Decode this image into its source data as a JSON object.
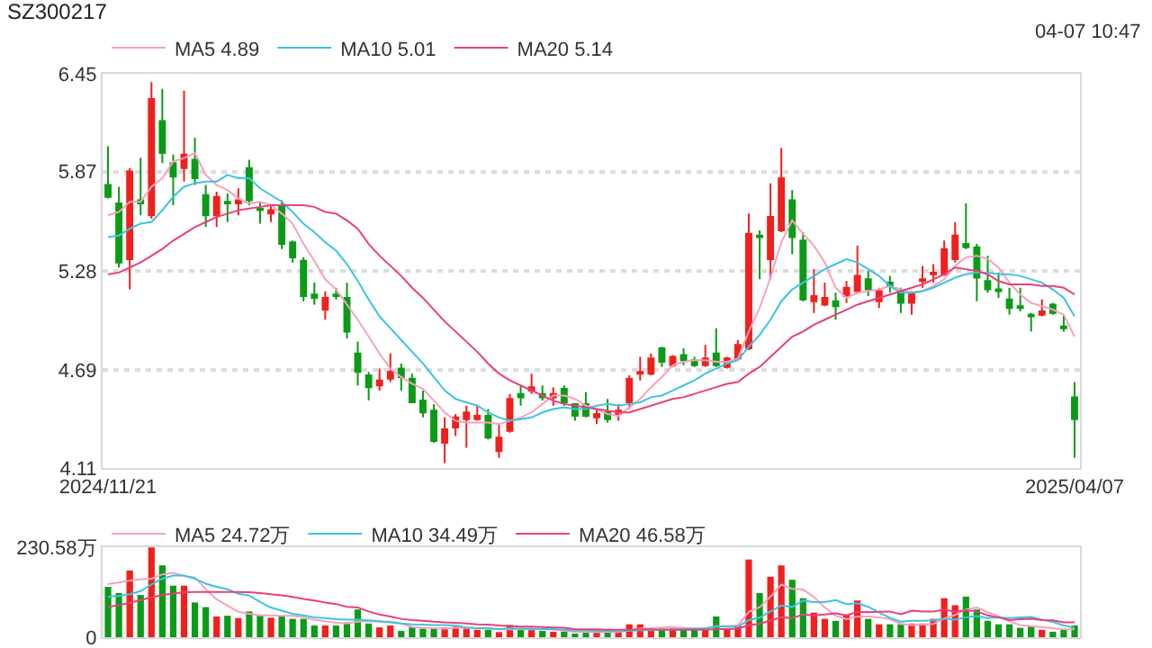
{
  "chart_data": [
    {
      "type": "candlestick",
      "title": "SZ300217",
      "annotations": [
        "04-07 10:47"
      ],
      "categories": [
        "2024/11/21",
        null,
        null,
        null,
        null,
        null,
        null,
        null,
        null,
        null,
        null,
        null,
        null,
        null,
        null,
        null,
        null,
        null,
        null,
        null,
        null,
        null,
        null,
        null,
        null,
        null,
        null,
        null,
        null,
        null,
        null,
        null,
        null,
        null,
        null,
        null,
        null,
        null,
        null,
        null,
        null,
        null,
        null,
        null,
        null,
        null,
        null,
        null,
        null,
        null,
        null,
        null,
        null,
        null,
        null,
        null,
        null,
        null,
        null,
        null,
        null,
        null,
        null,
        null,
        null,
        null,
        null,
        null,
        null,
        null,
        null,
        null,
        null,
        null,
        null,
        null,
        null,
        null,
        null,
        null,
        null,
        null,
        null,
        null,
        null,
        null,
        null,
        null,
        null,
        "2025/04/07"
      ],
      "ohlc": [
        [
          5.79,
          6.02,
          5.71,
          5.72
        ],
        [
          5.68,
          5.78,
          5.3,
          5.33
        ],
        [
          5.35,
          5.89,
          5.17,
          5.87
        ],
        [
          5.7,
          5.95,
          5.61,
          5.68
        ],
        [
          5.61,
          6.4,
          5.59,
          6.3
        ],
        [
          6.17,
          6.36,
          5.92,
          5.98
        ],
        [
          5.92,
          5.97,
          5.67,
          5.84
        ],
        [
          5.89,
          6.35,
          5.81,
          5.97
        ],
        [
          5.94,
          6.07,
          5.79,
          5.83
        ],
        [
          5.73,
          5.79,
          5.54,
          5.61
        ],
        [
          5.61,
          5.75,
          5.54,
          5.72
        ],
        [
          5.69,
          5.74,
          5.57,
          5.68
        ],
        [
          5.68,
          5.77,
          5.61,
          5.7
        ],
        [
          5.89,
          5.94,
          5.67,
          5.7
        ],
        [
          5.65,
          5.69,
          5.56,
          5.64
        ],
        [
          5.62,
          5.67,
          5.57,
          5.64
        ],
        [
          5.67,
          5.7,
          5.41,
          5.44
        ],
        [
          5.45,
          5.46,
          5.33,
          5.36
        ],
        [
          5.34,
          5.36,
          5.1,
          5.13
        ],
        [
          5.14,
          5.21,
          5.08,
          5.12
        ],
        [
          5.05,
          5.16,
          4.99,
          5.12
        ],
        [
          5.14,
          5.18,
          5.11,
          5.13
        ],
        [
          5.12,
          5.21,
          4.88,
          4.92
        ],
        [
          4.79,
          4.86,
          4.6,
          4.68
        ],
        [
          4.66,
          4.68,
          4.51,
          4.59
        ],
        [
          4.6,
          4.7,
          4.57,
          4.63
        ],
        [
          4.64,
          4.79,
          4.62,
          4.68
        ],
        [
          4.7,
          4.73,
          4.57,
          4.65
        ],
        [
          4.64,
          4.67,
          4.5,
          4.5
        ],
        [
          4.51,
          4.57,
          4.41,
          4.44
        ],
        [
          4.45,
          4.49,
          4.26,
          4.27
        ],
        [
          4.26,
          4.41,
          4.14,
          4.34
        ],
        [
          4.35,
          4.43,
          4.3,
          4.41
        ],
        [
          4.4,
          4.48,
          4.23,
          4.44
        ],
        [
          4.4,
          4.48,
          4.39,
          4.42
        ],
        [
          4.42,
          4.46,
          4.28,
          4.29
        ],
        [
          4.21,
          4.37,
          4.17,
          4.29
        ],
        [
          4.33,
          4.55,
          4.32,
          4.52
        ],
        [
          4.55,
          4.6,
          4.48,
          4.53
        ],
        [
          4.57,
          4.67,
          4.55,
          4.59
        ],
        [
          4.55,
          4.6,
          4.51,
          4.53
        ],
        [
          4.53,
          4.59,
          4.48,
          4.55
        ],
        [
          4.58,
          4.6,
          4.48,
          4.5
        ],
        [
          4.49,
          4.49,
          4.39,
          4.42
        ],
        [
          4.49,
          4.56,
          4.41,
          4.42
        ],
        [
          4.41,
          4.46,
          4.37,
          4.43
        ],
        [
          4.44,
          4.52,
          4.38,
          4.4
        ],
        [
          4.43,
          4.49,
          4.39,
          4.45
        ],
        [
          4.5,
          4.66,
          4.46,
          4.64
        ],
        [
          4.67,
          4.77,
          4.63,
          4.68
        ],
        [
          4.67,
          4.79,
          4.66,
          4.76
        ],
        [
          4.82,
          4.83,
          4.71,
          4.74
        ],
        [
          4.72,
          4.78,
          4.71,
          4.77
        ],
        [
          4.78,
          4.82,
          4.72,
          4.75
        ],
        [
          4.75,
          4.77,
          4.71,
          4.72
        ],
        [
          4.72,
          4.84,
          4.71,
          4.76
        ],
        [
          4.79,
          4.94,
          4.71,
          4.72
        ],
        [
          4.71,
          4.77,
          4.7,
          4.76
        ],
        [
          4.76,
          4.87,
          4.75,
          4.84
        ],
        [
          4.82,
          5.62,
          4.81,
          5.5
        ],
        [
          5.49,
          5.52,
          5.23,
          5.48
        ],
        [
          5.35,
          5.8,
          5.23,
          5.6
        ],
        [
          5.52,
          6.01,
          5.51,
          5.83
        ],
        [
          5.7,
          5.76,
          5.38,
          5.48
        ],
        [
          5.46,
          5.51,
          5.1,
          5.11
        ],
        [
          5.1,
          5.29,
          5.03,
          5.13
        ],
        [
          5.08,
          5.21,
          5.07,
          5.12
        ],
        [
          5.1,
          5.15,
          4.99,
          5.07
        ],
        [
          5.13,
          5.22,
          5.09,
          5.18
        ],
        [
          5.16,
          5.43,
          5.15,
          5.25
        ],
        [
          5.23,
          5.28,
          5.13,
          5.17
        ],
        [
          5.1,
          5.18,
          5.06,
          5.16
        ],
        [
          5.21,
          5.25,
          5.15,
          5.19
        ],
        [
          5.16,
          5.18,
          5.03,
          5.09
        ],
        [
          5.09,
          5.16,
          5.02,
          5.15
        ],
        [
          5.22,
          5.31,
          5.18,
          5.23
        ],
        [
          5.26,
          5.32,
          5.21,
          5.27
        ],
        [
          5.26,
          5.46,
          5.25,
          5.41
        ],
        [
          5.35,
          5.57,
          5.33,
          5.49
        ],
        [
          5.44,
          5.68,
          5.41,
          5.42
        ],
        [
          5.42,
          5.44,
          5.1,
          5.24
        ],
        [
          5.22,
          5.37,
          5.15,
          5.17
        ],
        [
          5.17,
          5.27,
          5.12,
          5.16
        ],
        [
          5.11,
          5.18,
          5.02,
          5.06
        ],
        [
          5.07,
          5.18,
          5.04,
          5.06
        ],
        [
          5.02,
          5.03,
          4.92,
          5.01
        ],
        [
          5.02,
          5.11,
          5.01,
          5.04
        ],
        [
          5.08,
          5.09,
          5.02,
          5.03
        ],
        [
          4.95,
          5.02,
          4.92,
          4.94
        ],
        [
          4.53,
          4.62,
          4.17,
          4.4
        ]
      ],
      "series": [
        {
          "type": "line",
          "name": "MA5 4.89",
          "color": "#f7a1bf",
          "values": [
            5.61,
            5.63,
            5.69,
            5.69,
            5.78,
            5.83,
            5.93,
            5.95,
            5.98,
            5.85,
            5.79,
            5.76,
            5.71,
            5.68,
            5.69,
            5.67,
            5.62,
            5.56,
            5.44,
            5.34,
            5.23,
            5.17,
            5.08,
            4.99,
            4.89,
            4.79,
            4.7,
            4.65,
            4.61,
            4.58,
            4.51,
            4.44,
            4.39,
            4.38,
            4.38,
            4.38,
            4.37,
            4.39,
            4.41,
            4.44,
            4.49,
            4.54,
            4.54,
            4.52,
            4.48,
            4.46,
            4.43,
            4.42,
            4.47,
            4.52,
            4.59,
            4.65,
            4.72,
            4.74,
            4.75,
            4.75,
            4.74,
            4.74,
            4.76,
            4.92,
            5.06,
            5.24,
            5.45,
            5.58,
            5.5,
            5.43,
            5.33,
            5.18,
            5.12,
            5.15,
            5.16,
            5.17,
            5.19,
            5.17,
            5.15,
            5.16,
            5.19,
            5.23,
            5.31,
            5.36,
            5.37,
            5.35,
            5.3,
            5.21,
            5.14,
            5.09,
            5.07,
            5.05,
            5.02,
            4.89
          ]
        },
        {
          "type": "line",
          "name": "MA10 5.01",
          "color": "#3cc3e3",
          "values": [
            5.48,
            5.49,
            5.53,
            5.56,
            5.57,
            5.64,
            5.72,
            5.78,
            5.8,
            5.81,
            5.81,
            5.85,
            5.83,
            5.83,
            5.77,
            5.73,
            5.69,
            5.63,
            5.56,
            5.51,
            5.45,
            5.4,
            5.32,
            5.22,
            5.11,
            5.01,
            4.94,
            4.87,
            4.8,
            4.73,
            4.65,
            4.57,
            4.52,
            4.5,
            4.48,
            4.44,
            4.41,
            4.39,
            4.4,
            4.41,
            4.44,
            4.46,
            4.47,
            4.46,
            4.46,
            4.48,
            4.49,
            4.48,
            4.49,
            4.5,
            4.53,
            4.54,
            4.57,
            4.6,
            4.63,
            4.67,
            4.7,
            4.73,
            4.75,
            4.83,
            4.9,
            4.99,
            5.1,
            5.17,
            5.21,
            5.25,
            5.29,
            5.32,
            5.35,
            5.33,
            5.29,
            5.25,
            5.19,
            5.15,
            5.15,
            5.16,
            5.18,
            5.21,
            5.24,
            5.26,
            5.27,
            5.27,
            5.26,
            5.26,
            5.25,
            5.23,
            5.21,
            5.17,
            5.12,
            5.01
          ]
        },
        {
          "type": "line",
          "name": "MA20 5.14",
          "color": "#e8407a",
          "values": [
            5.26,
            5.27,
            5.3,
            5.33,
            5.37,
            5.41,
            5.46,
            5.5,
            5.54,
            5.57,
            5.6,
            5.62,
            5.64,
            5.65,
            5.66,
            5.67,
            5.67,
            5.67,
            5.67,
            5.66,
            5.63,
            5.62,
            5.58,
            5.53,
            5.44,
            5.37,
            5.31,
            5.25,
            5.18,
            5.12,
            5.05,
            4.98,
            4.92,
            4.86,
            4.8,
            4.73,
            4.67,
            4.63,
            4.6,
            4.57,
            4.54,
            4.51,
            4.49,
            4.48,
            4.47,
            4.46,
            4.45,
            4.44,
            4.44,
            4.46,
            4.48,
            4.5,
            4.52,
            4.53,
            4.55,
            4.57,
            4.59,
            4.61,
            4.62,
            4.67,
            4.71,
            4.77,
            4.83,
            4.89,
            4.92,
            4.96,
            4.99,
            5.02,
            5.05,
            5.08,
            5.1,
            5.12,
            5.14,
            5.16,
            5.18,
            5.2,
            5.23,
            5.26,
            5.3,
            5.29,
            5.28,
            5.26,
            5.22,
            5.2,
            5.2,
            5.2,
            5.19,
            5.19,
            5.18,
            5.14
          ]
        }
      ],
      "ylim": [
        4.11,
        6.45
      ],
      "yticks": [
        4.11,
        4.69,
        5.28,
        5.87,
        6.45
      ],
      "grid": "y",
      "legend": "top left"
    },
    {
      "type": "bar",
      "categories": [
        "2024/11/21",
        null,
        null,
        null,
        null,
        null,
        null,
        null,
        null,
        null,
        null,
        null,
        null,
        null,
        null,
        null,
        null,
        null,
        null,
        null,
        null,
        null,
        null,
        null,
        null,
        null,
        null,
        null,
        null,
        null,
        null,
        null,
        null,
        null,
        null,
        null,
        null,
        null,
        null,
        null,
        null,
        null,
        null,
        null,
        null,
        null,
        null,
        null,
        null,
        null,
        null,
        null,
        null,
        null,
        null,
        null,
        null,
        null,
        null,
        null,
        null,
        null,
        null,
        null,
        null,
        null,
        null,
        null,
        null,
        null,
        null,
        null,
        null,
        null,
        null,
        null,
        null,
        null,
        null,
        null,
        null,
        null,
        null,
        null,
        null,
        null,
        null,
        null,
        null,
        "2025/04/07"
      ],
      "series": [
        {
          "type": "bar",
          "values": [
            129,
            113,
            171,
            108,
            230,
            184,
            132,
            132,
            89,
            77,
            53,
            55,
            49,
            66,
            58,
            50,
            53,
            47,
            47,
            30,
            30,
            30,
            38,
            71,
            35,
            25,
            30,
            16,
            25,
            22,
            22,
            25,
            27,
            22,
            19,
            19,
            13,
            31,
            19,
            19,
            16,
            14,
            14,
            9,
            14,
            14,
            14,
            14,
            33,
            33,
            22,
            22,
            22,
            22,
            22,
            22,
            53,
            22,
            31,
            199,
            113,
            155,
            184,
            147,
            100,
            63,
            47,
            42,
            58,
            94,
            47,
            33,
            33,
            33,
            35,
            35,
            47,
            100,
            82,
            104,
            71,
            42,
            33,
            33,
            24,
            30,
            19,
            14,
            19,
            30
          ],
          "colors": [
            "#0b9b16",
            "#0b9b16",
            "#f0201c",
            "#0b9b16",
            "#f0201c",
            "#0b9b16",
            "#0b9b16",
            "#f0201c",
            "#0b9b16",
            "#0b9b16",
            "#f0201c",
            "#0b9b16",
            "#f0201c",
            "#0b9b16",
            "#0b9b16",
            "#f0201c",
            "#0b9b16",
            "#0b9b16",
            "#0b9b16",
            "#0b9b16",
            "#f0201c",
            "#0b9b16",
            "#0b9b16",
            "#0b9b16",
            "#0b9b16",
            "#f0201c",
            "#f0201c",
            "#0b9b16",
            "#0b9b16",
            "#0b9b16",
            "#0b9b16",
            "#f0201c",
            "#f0201c",
            "#f0201c",
            "#f0201c",
            "#0b9b16",
            "#f0201c",
            "#f0201c",
            "#0b9b16",
            "#f0201c",
            "#0b9b16",
            "#f0201c",
            "#0b9b16",
            "#0b9b16",
            "#0b9b16",
            "#f0201c",
            "#0b9b16",
            "#f0201c",
            "#f0201c",
            "#f0201c",
            "#f0201c",
            "#0b9b16",
            "#f0201c",
            "#0b9b16",
            "#0b9b16",
            "#f0201c",
            "#0b9b16",
            "#f0201c",
            "#f0201c",
            "#f0201c",
            "#0b9b16",
            "#f0201c",
            "#f0201c",
            "#0b9b16",
            "#0b9b16",
            "#f0201c",
            "#f0201c",
            "#0b9b16",
            "#f0201c",
            "#f0201c",
            "#0b9b16",
            "#f0201c",
            "#0b9b16",
            "#0b9b16",
            "#f0201c",
            "#f0201c",
            "#f0201c",
            "#f0201c",
            "#f0201c",
            "#0b9b16",
            "#0b9b16",
            "#0b9b16",
            "#0b9b16",
            "#0b9b16",
            "#0b9b16",
            "#0b9b16",
            "#f0201c",
            "#0b9b16",
            "#0b9b16",
            "#0b9b16"
          ]
        },
        {
          "type": "line",
          "name": "MA5 24.72万",
          "color": "#f7a1bf",
          "values": [
            136,
            140,
            145,
            148,
            150,
            161,
            165,
            157,
            153,
            123,
            97,
            81,
            65,
            60,
            56,
            56,
            55,
            55,
            51,
            45,
            41,
            37,
            35,
            40,
            41,
            40,
            40,
            35,
            26,
            24,
            23,
            22,
            24,
            24,
            23,
            22,
            20,
            21,
            20,
            20,
            20,
            20,
            16,
            14,
            13,
            13,
            13,
            13,
            18,
            22,
            23,
            25,
            26,
            24,
            22,
            22,
            28,
            28,
            30,
            65,
            77,
            104,
            135,
            124,
            122,
            103,
            76,
            55,
            46,
            53,
            53,
            51,
            46,
            34,
            31,
            32,
            34,
            48,
            57,
            71,
            76,
            64,
            54,
            40,
            31,
            28,
            26,
            23,
            20,
            20
          ]
        },
        {
          "type": "line",
          "name": "MA10 34.49万",
          "color": "#3cc3e3",
          "values": [
            104,
            106,
            110,
            118,
            135,
            150,
            158,
            158,
            150,
            137,
            129,
            123,
            111,
            107,
            90,
            76,
            68,
            60,
            56,
            51,
            49,
            46,
            45,
            45,
            43,
            41,
            38,
            35,
            33,
            32,
            31,
            31,
            30,
            25,
            23,
            23,
            21,
            23,
            22,
            22,
            21,
            20,
            19,
            17,
            17,
            16,
            16,
            15,
            16,
            18,
            18,
            19,
            20,
            21,
            22,
            23,
            27,
            27,
            27,
            44,
            50,
            66,
            81,
            77,
            94,
            90,
            90,
            95,
            85,
            87,
            78,
            63,
            50,
            40,
            42,
            42,
            43,
            47,
            45,
            51,
            54,
            49,
            51,
            49,
            51,
            52,
            45,
            39,
            30,
            25
          ]
        },
        {
          "type": "line",
          "name": "MA20 46.58万",
          "color": "#e8407a",
          "values": [
            78,
            82,
            88,
            95,
            102,
            108,
            112,
            115,
            116,
            116,
            116,
            116,
            116,
            115,
            113,
            110,
            107,
            103,
            98,
            94,
            89,
            85,
            78,
            76,
            66,
            58,
            53,
            47,
            44,
            42,
            40,
            38,
            37,
            35,
            33,
            32,
            30,
            29,
            27,
            27,
            26,
            25,
            24,
            21,
            20,
            20,
            19,
            19,
            19,
            20,
            20,
            19,
            19,
            19,
            19,
            19,
            21,
            21,
            22,
            31,
            34,
            43,
            51,
            49,
            58,
            56,
            58,
            61,
            56,
            65,
            64,
            65,
            66,
            59,
            68,
            66,
            66,
            71,
            65,
            69,
            66,
            56,
            51,
            44,
            46,
            47,
            44,
            43,
            38,
            38
          ]
        }
      ],
      "ylim": [
        0,
        230.58
      ],
      "yticks": [
        0,
        {
          "value": 230.58,
          "label": "230.58万"
        }
      ],
      "legend": "top left",
      "tick_labels": "y"
    }
  ]
}
